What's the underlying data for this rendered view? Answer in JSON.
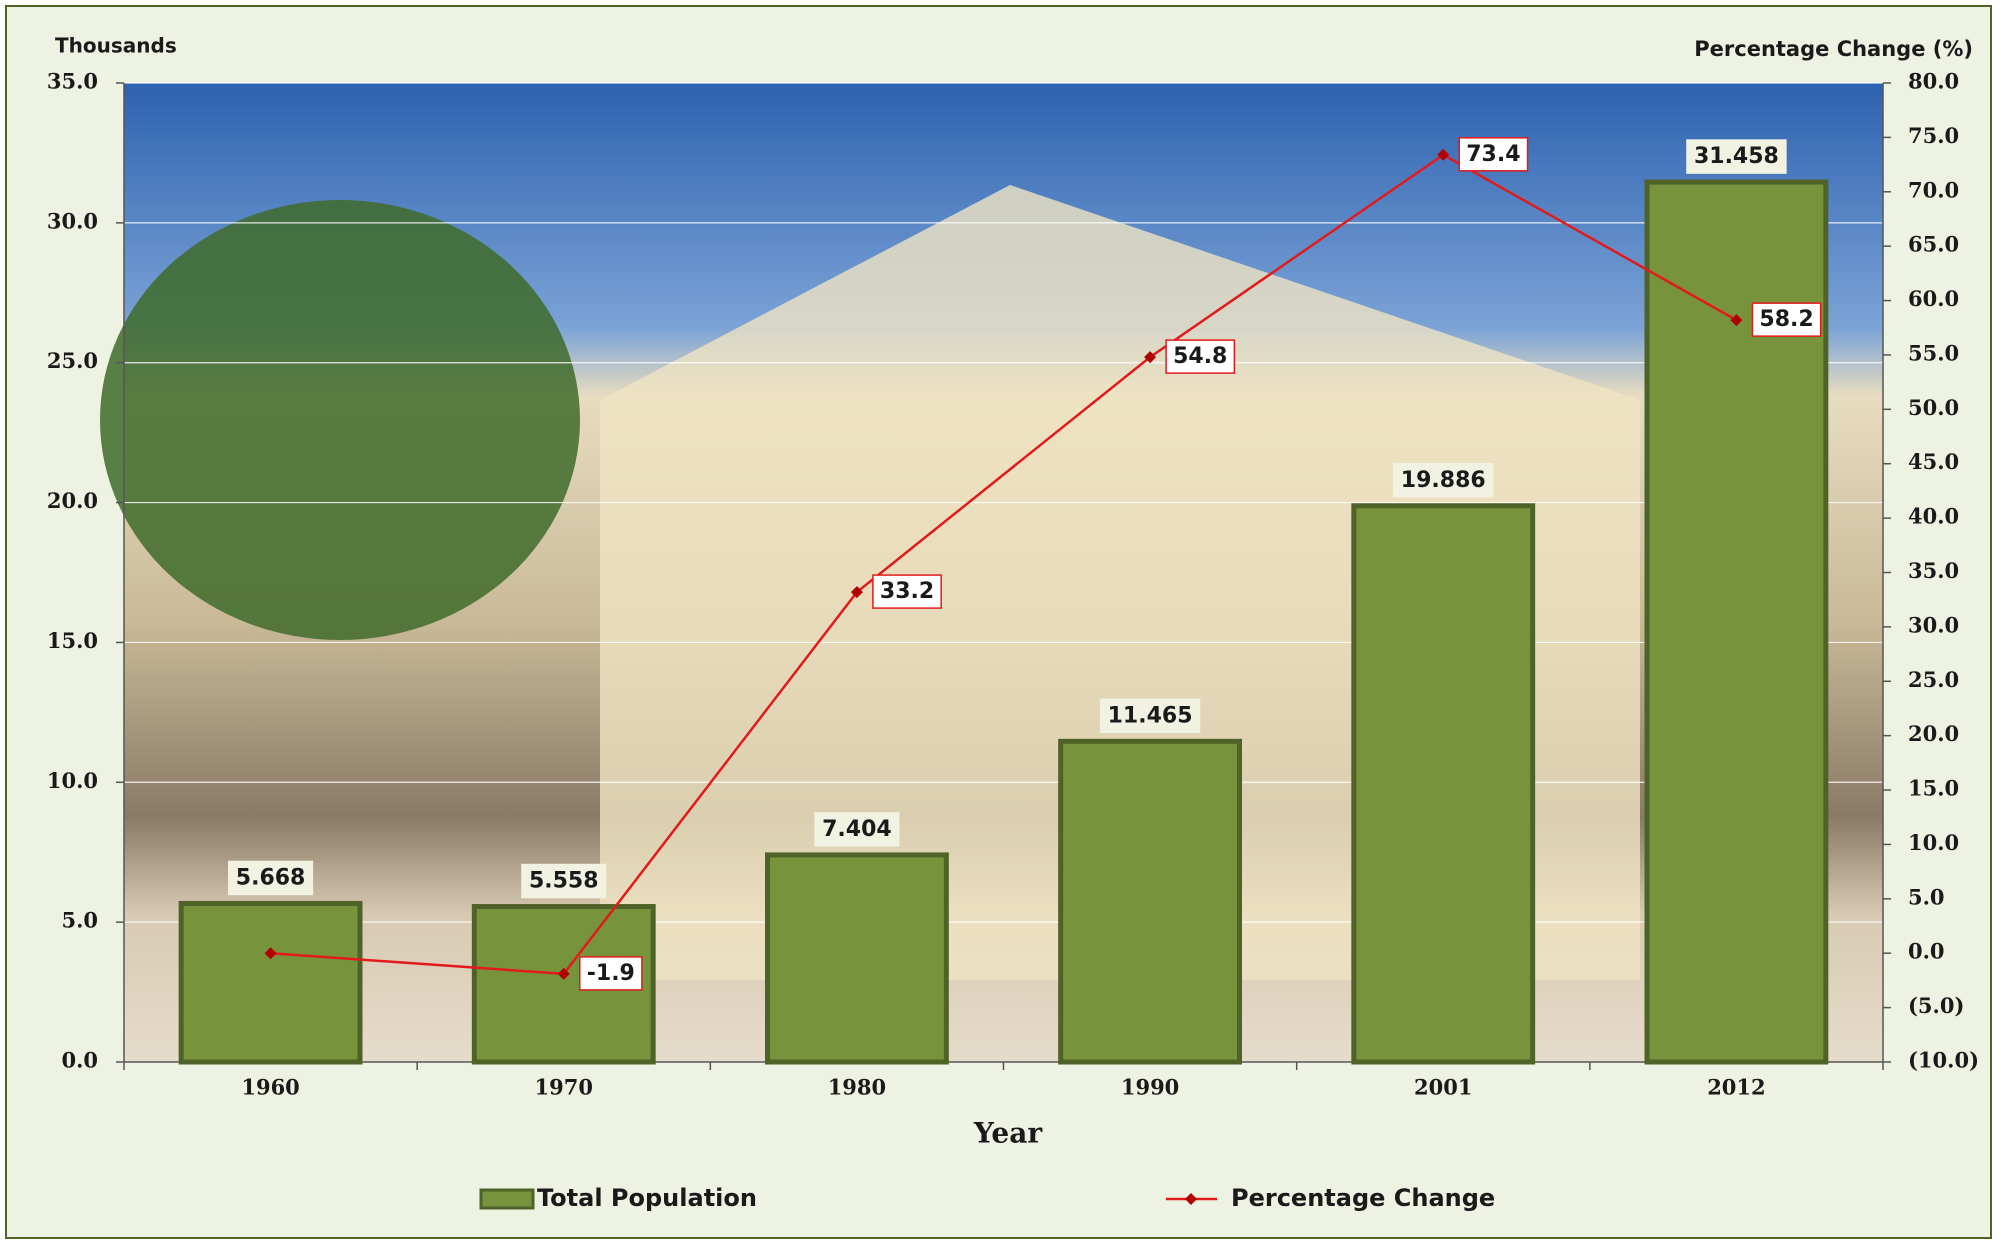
{
  "chart_data": {
    "type": "bar",
    "left_axis_label": "Thousands",
    "right_axis_label": "Percentage  Change (%)",
    "x_label": "Year",
    "categories": [
      "1960",
      "1970",
      "1980",
      "1990",
      "2001",
      "2012"
    ],
    "series": [
      {
        "name": "Total Population",
        "type": "bar",
        "color": "#77933c",
        "values": [
          5.668,
          5.558,
          7.404,
          11.465,
          19.886,
          31.458
        ]
      },
      {
        "name": "Percentage Change",
        "type": "line",
        "axis": "y2",
        "color": "#e31a1c",
        "values": [
          0,
          -1.9,
          33.2,
          54.8,
          73.4,
          58.2
        ],
        "value_labels": [
          null,
          "-1.9",
          "33.2",
          "54.8",
          "73.4",
          "58.2"
        ]
      }
    ],
    "ylim": [
      0,
      35
    ],
    "yticks": [
      {
        "value": 0,
        "label": "0.0"
      },
      {
        "value": 5,
        "label": "5.0"
      },
      {
        "value": 10,
        "label": "10.0"
      },
      {
        "value": 15,
        "label": "15.0"
      },
      {
        "value": 20,
        "label": "20.0"
      },
      {
        "value": 25,
        "label": "25.0"
      },
      {
        "value": 30,
        "label": "30.0"
      },
      {
        "value": 35,
        "label": "35.0"
      }
    ],
    "y2lim": [
      -10,
      80
    ],
    "y2ticks": [
      {
        "value": -10,
        "label": "(10.0)"
      },
      {
        "value": -5,
        "label": "(5.0)"
      },
      {
        "value": 0,
        "label": "0.0"
      },
      {
        "value": 5,
        "label": "5.0"
      },
      {
        "value": 10,
        "label": "10.0"
      },
      {
        "value": 15,
        "label": "15.0"
      },
      {
        "value": 20,
        "label": "20.0"
      },
      {
        "value": 25,
        "label": "25.0"
      },
      {
        "value": 30,
        "label": "30.0"
      },
      {
        "value": 35,
        "label": "35.0"
      },
      {
        "value": 40,
        "label": "40.0"
      },
      {
        "value": 45,
        "label": "45.0"
      },
      {
        "value": 50,
        "label": "50.0"
      },
      {
        "value": 55,
        "label": "55.0"
      },
      {
        "value": 60,
        "label": "60.0"
      },
      {
        "value": 65,
        "label": "65.0"
      },
      {
        "value": 70,
        "label": "70.0"
      },
      {
        "value": 75,
        "label": "75.0"
      },
      {
        "value": 80,
        "label": "80.0"
      }
    ],
    "grid": true,
    "legend": "bottom"
  }
}
